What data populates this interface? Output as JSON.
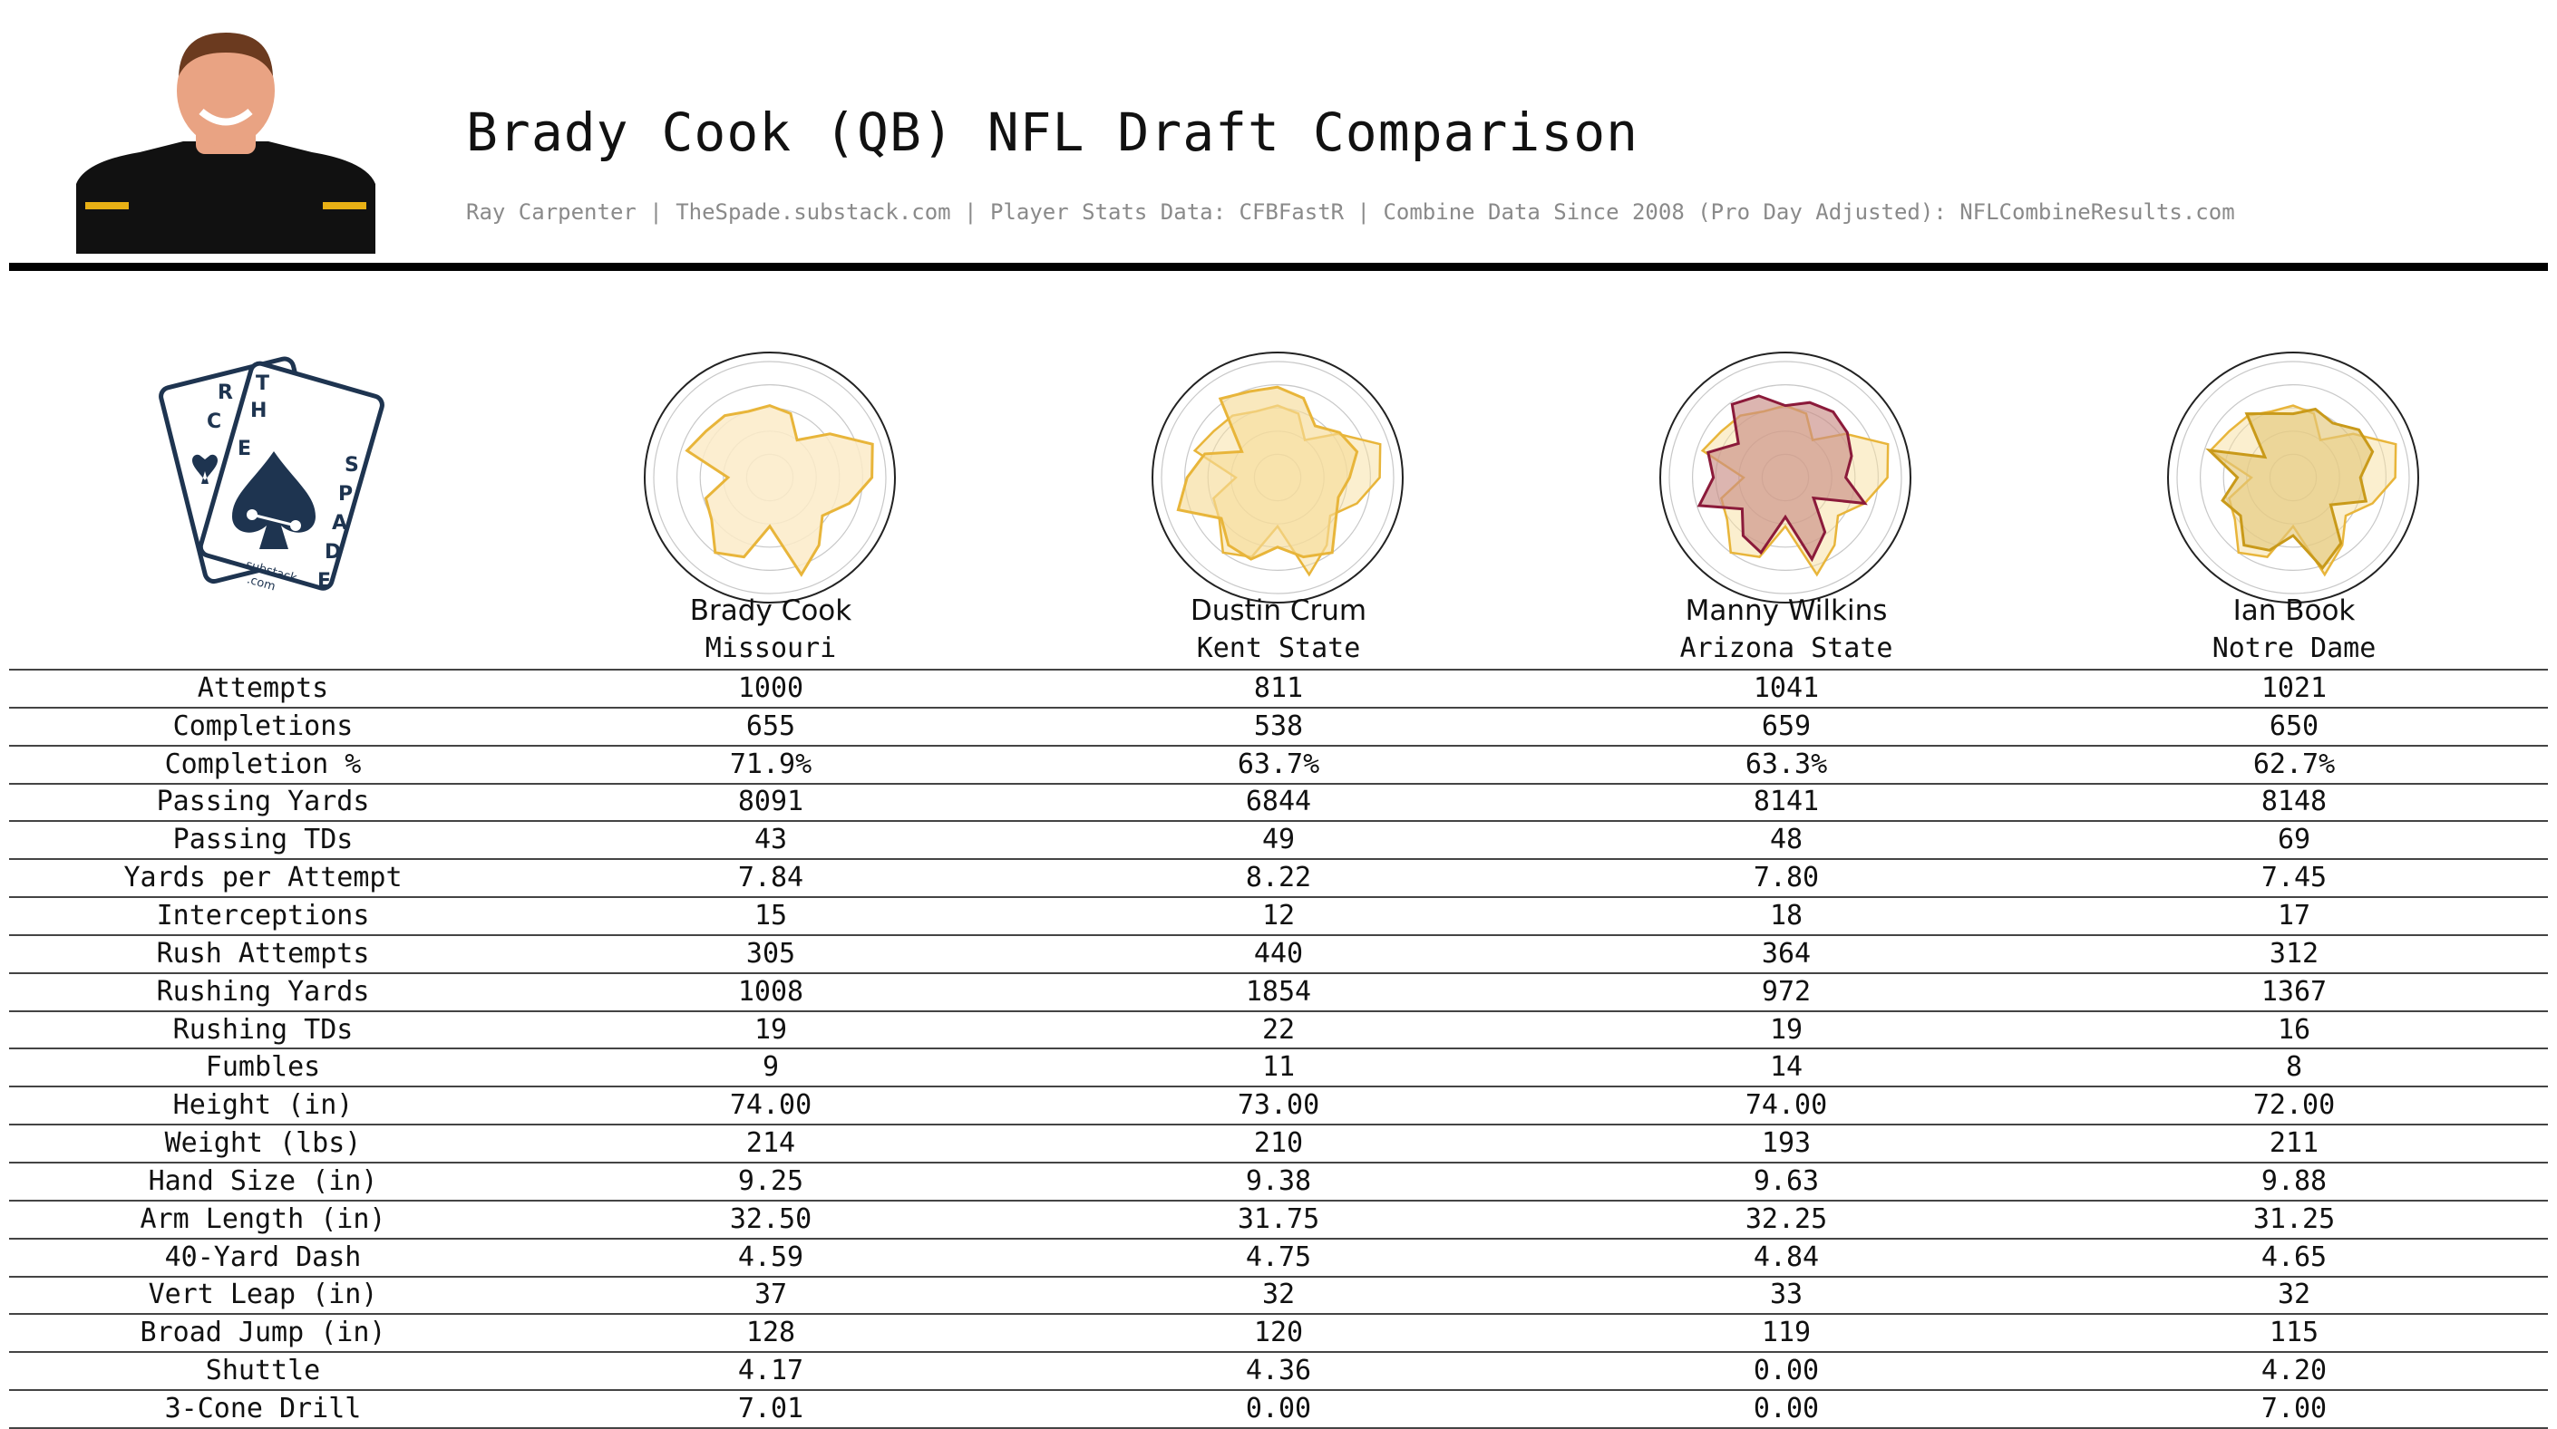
{
  "header": {
    "title": "Brady Cook (QB) NFL Draft Comparison",
    "subtitle": "Ray Carpenter | TheSpade.substack.com | Player Stats Data: CFBFastR | Combine Data Since 2008 (Pro Day Adjusted): NFLCombineResults.com",
    "photo": {
      "jersey_color": "#111111",
      "accent_color": "#e8b015",
      "skin_color": "#e9a383"
    }
  },
  "logo": {
    "letters_left_card": "RCE",
    "letters_right_card": [
      "T",
      "H",
      "E",
      "S",
      "P",
      "A",
      "D",
      "E"
    ],
    "caption_line1": ".substack",
    "caption_line2": ".com",
    "color": "#1e3450"
  },
  "players": [
    {
      "name": "Brady Cook",
      "school": "Missouri"
    },
    {
      "name": "Dustin Crum",
      "school": "Kent State"
    },
    {
      "name": "Manny Wilkins",
      "school": "Arizona State"
    },
    {
      "name": "Ian Book",
      "school": "Notre Dame"
    }
  ],
  "stats": {
    "rows": [
      {
        "label": "Attempts",
        "values": [
          "1000",
          "811",
          "1041",
          "1021"
        ]
      },
      {
        "label": "Completions",
        "values": [
          "655",
          "538",
          "659",
          "650"
        ]
      },
      {
        "label": "Completion %",
        "values": [
          "71.9%",
          "63.7%",
          "63.3%",
          "62.7%"
        ]
      },
      {
        "label": "Passing Yards",
        "values": [
          "8091",
          "6844",
          "8141",
          "8148"
        ]
      },
      {
        "label": "Passing TDs",
        "values": [
          "43",
          "49",
          "48",
          "69"
        ]
      },
      {
        "label": "Yards per Attempt",
        "values": [
          "7.84",
          "8.22",
          "7.80",
          "7.45"
        ]
      },
      {
        "label": "Interceptions",
        "values": [
          "15",
          "12",
          "18",
          "17"
        ]
      },
      {
        "label": "Rush Attempts",
        "values": [
          "305",
          "440",
          "364",
          "312"
        ]
      },
      {
        "label": "Rushing Yards",
        "values": [
          "1008",
          "1854",
          "972",
          "1367"
        ]
      },
      {
        "label": "Rushing TDs",
        "values": [
          "19",
          "22",
          "19",
          "16"
        ]
      },
      {
        "label": "Fumbles",
        "values": [
          "9",
          "11",
          "14",
          "8"
        ]
      },
      {
        "label": "Height (in)",
        "values": [
          "74.00",
          "73.00",
          "74.00",
          "72.00"
        ]
      },
      {
        "label": "Weight (lbs)",
        "values": [
          "214",
          "210",
          "193",
          "211"
        ]
      },
      {
        "label": "Hand Size (in)",
        "values": [
          "9.25",
          "9.38",
          "9.63",
          "9.88"
        ]
      },
      {
        "label": "Arm Length (in)",
        "values": [
          "32.50",
          "31.75",
          "32.25",
          "31.25"
        ]
      },
      {
        "label": "40-Yard Dash",
        "values": [
          "4.59",
          "4.75",
          "4.84",
          "4.65"
        ]
      },
      {
        "label": "Vert Leap (in)",
        "values": [
          "37",
          "32",
          "33",
          "32"
        ]
      },
      {
        "label": "Broad Jump (in)",
        "values": [
          "128",
          "120",
          "119",
          "115"
        ]
      },
      {
        "label": "Shuttle",
        "values": [
          "4.17",
          "4.36",
          "0.00",
          "4.20"
        ]
      },
      {
        "label": "3-Cone Drill",
        "values": [
          "7.01",
          "0.00",
          "0.00",
          "7.00"
        ]
      }
    ]
  },
  "chart_data": {
    "type": "radar",
    "rings": 5,
    "range": [
      0,
      1
    ],
    "axes_count": 20,
    "colors": {
      "reference_stroke": "#e8b53a",
      "reference_fill": "#f7dfa0",
      "brady_fill": "#fbebc8",
      "crum_fill": "#f6dc9a",
      "wilkins_stroke": "#8b1a3a",
      "wilkins_fill": "#c98e86",
      "book_stroke": "#c99a1a",
      "book_fill": "#e3c77c"
    },
    "reference": {
      "values": [
        0.62,
        0.58,
        0.4,
        0.64,
        0.93,
        0.88,
        0.72,
        0.56,
        0.72,
        0.88,
        0.42,
        0.72,
        0.8,
        0.62,
        0.58,
        0.36,
        0.75,
        0.68,
        0.66,
        0.6
      ]
    },
    "series": [
      {
        "values": [
          0.62,
          0.58,
          0.4,
          0.64,
          0.93,
          0.88,
          0.72,
          0.56,
          0.72,
          0.88,
          0.42,
          0.72,
          0.8,
          0.62,
          0.58,
          0.36,
          0.75,
          0.68,
          0.66,
          0.6
        ]
      },
      {
        "values": [
          0.78,
          0.72,
          0.55,
          0.66,
          0.72,
          0.62,
          0.55,
          0.62,
          0.8,
          0.72,
          0.6,
          0.74,
          0.72,
          0.6,
          0.9,
          0.78,
          0.66,
          0.38,
          0.84,
          0.78
        ]
      },
      {
        "values": [
          0.62,
          0.68,
          0.7,
          0.66,
          0.6,
          0.52,
          0.72,
          0.3,
          0.58,
          0.74,
          0.34,
          0.68,
          0.62,
          0.46,
          0.78,
          0.62,
          0.7,
          0.5,
          0.78,
          0.74
        ]
      },
      {
        "values": [
          0.55,
          0.62,
          0.58,
          0.7,
          0.72,
          0.58,
          0.66,
          0.4,
          0.7,
          0.82,
          0.5,
          0.66,
          0.72,
          0.56,
          0.64,
          0.48,
          0.76,
          0.3,
          0.68,
          0.58
        ]
      }
    ]
  }
}
